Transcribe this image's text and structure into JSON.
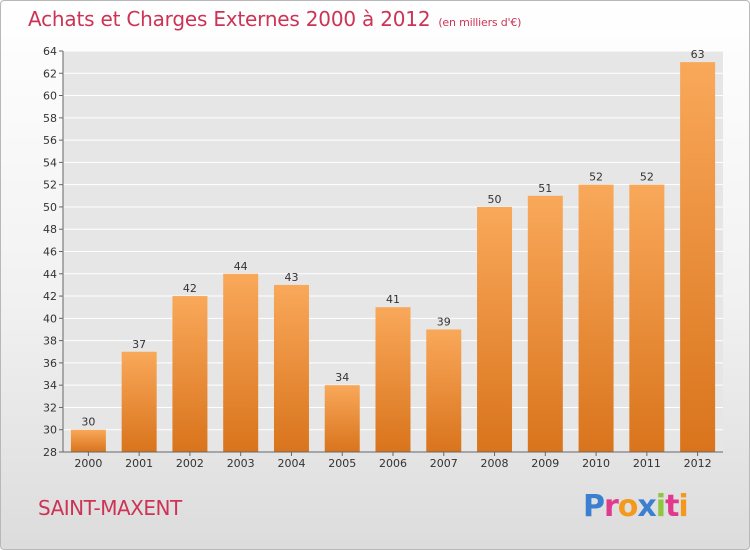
{
  "title": "Achats et Charges Externes 2000 à 2012",
  "subtitle": "(en milliers d'€)",
  "commune": "SAINT-MAXENT",
  "logo": {
    "text": "Proxiti",
    "letters": [
      {
        "ch": "P",
        "color": "#3b7fd0"
      },
      {
        "ch": "r",
        "color": "#e0398e"
      },
      {
        "ch": "o",
        "color": "#f39a1e"
      },
      {
        "ch": "x",
        "color": "#3b7fd0"
      },
      {
        "ch": "i",
        "color": "#8dc63f"
      },
      {
        "ch": "t",
        "color": "#e0398e"
      },
      {
        "ch": "i",
        "color": "#f39a1e"
      }
    ]
  },
  "colors": {
    "title": "#cc3355",
    "bar_light": "#f9a85a",
    "bar_dark": "#d9741c",
    "grid": "#ffffff"
  },
  "chart_data": {
    "type": "bar",
    "categories": [
      "2000",
      "2001",
      "2002",
      "2003",
      "2004",
      "2005",
      "2006",
      "2007",
      "2008",
      "2009",
      "2010",
      "2011",
      "2012"
    ],
    "values": [
      30,
      37,
      42,
      44,
      43,
      34,
      41,
      39,
      50,
      51,
      52,
      52,
      63
    ],
    "ylim": [
      28,
      64
    ],
    "yticks": [
      28,
      30,
      32,
      34,
      36,
      38,
      40,
      42,
      44,
      46,
      48,
      50,
      52,
      54,
      56,
      58,
      60,
      62,
      64
    ],
    "grid": true
  }
}
